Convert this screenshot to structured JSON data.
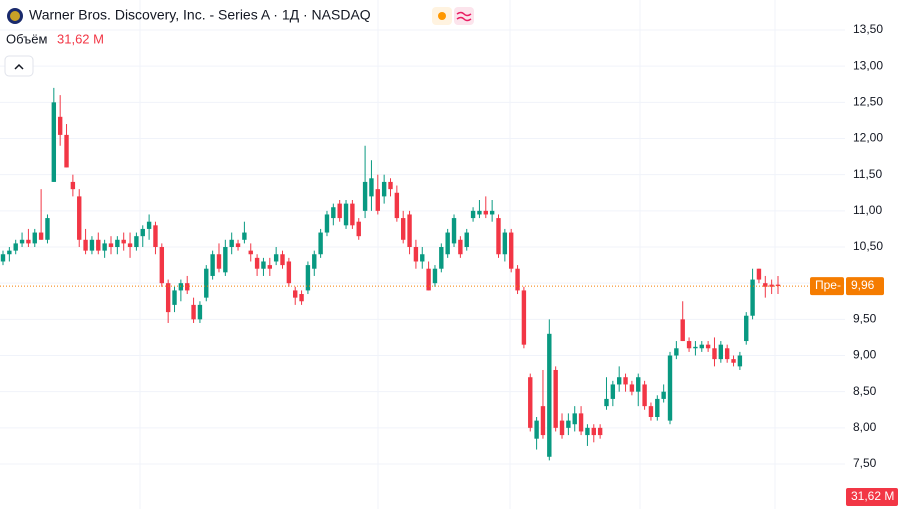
{
  "chart_data": {
    "type": "candlestick",
    "title": "Warner Bros. Discovery, Inc. - Series A · 1Д · NASDAQ",
    "volume_title": "Объём",
    "volume": {
      "value": 31.62,
      "label": "31,62 M"
    },
    "last_price": {
      "value": 9.96,
      "label": "9,96"
    },
    "last_price_tag": "Пре-",
    "up_color": "#089981",
    "down_color": "#f23645",
    "ylim": [
      6.878,
      13.915
    ],
    "yticks": [
      {
        "value": 7.5,
        "label": "7,50"
      },
      {
        "value": 8,
        "label": "8,00"
      },
      {
        "value": 8.5,
        "label": "8,50"
      },
      {
        "value": 9,
        "label": "9,00"
      },
      {
        "value": 9.5,
        "label": "9,50"
      },
      {
        "value": 10,
        "label": "10,00"
      },
      {
        "value": 10.5,
        "label": "10,50"
      },
      {
        "value": 11,
        "label": "11,00"
      },
      {
        "value": 11.5,
        "label": "11,50"
      },
      {
        "value": 12,
        "label": "12,00"
      },
      {
        "value": 12.5,
        "label": "12,50"
      },
      {
        "value": 13,
        "label": "13,00"
      },
      {
        "value": 13.5,
        "label": "13,50"
      }
    ],
    "grid": true,
    "ohlc": [
      [
        10.3,
        10.45,
        10.25,
        10.4
      ],
      [
        10.4,
        10.5,
        10.3,
        10.45
      ],
      [
        10.45,
        10.6,
        10.4,
        10.55
      ],
      [
        10.55,
        10.7,
        10.5,
        10.6
      ],
      [
        10.6,
        10.75,
        10.5,
        10.55
      ],
      [
        10.55,
        10.75,
        10.5,
        10.7
      ],
      [
        10.7,
        11.3,
        10.6,
        10.6
      ],
      [
        10.6,
        10.95,
        10.55,
        10.9
      ],
      [
        11.4,
        12.7,
        11.4,
        12.5
      ],
      [
        12.3,
        12.6,
        11.9,
        12.05
      ],
      [
        12.05,
        12.2,
        11.6,
        11.6
      ],
      [
        11.4,
        11.5,
        11.2,
        11.3
      ],
      [
        11.2,
        11.3,
        10.5,
        10.6
      ],
      [
        10.6,
        10.75,
        10.4,
        10.45
      ],
      [
        10.45,
        10.65,
        10.4,
        10.6
      ],
      [
        10.6,
        10.7,
        10.4,
        10.45
      ],
      [
        10.45,
        10.6,
        10.35,
        10.55
      ],
      [
        10.55,
        10.65,
        10.4,
        10.5
      ],
      [
        10.5,
        10.65,
        10.4,
        10.6
      ],
      [
        10.6,
        10.7,
        10.45,
        10.55
      ],
      [
        10.55,
        10.7,
        10.35,
        10.5
      ],
      [
        10.5,
        10.7,
        10.45,
        10.65
      ],
      [
        10.65,
        10.8,
        10.5,
        10.75
      ],
      [
        10.75,
        10.95,
        10.6,
        10.85
      ],
      [
        10.8,
        10.85,
        10.4,
        10.5
      ],
      [
        10.5,
        10.55,
        9.95,
        10.0
      ],
      [
        10.0,
        10.05,
        9.45,
        9.6
      ],
      [
        9.7,
        9.95,
        9.6,
        9.9
      ],
      [
        9.9,
        10.05,
        9.75,
        10.0
      ],
      [
        10.0,
        10.1,
        9.85,
        9.9
      ],
      [
        9.7,
        9.8,
        9.45,
        9.5
      ],
      [
        9.5,
        9.75,
        9.45,
        9.7
      ],
      [
        9.8,
        10.25,
        9.75,
        10.2
      ],
      [
        10.1,
        10.45,
        10.05,
        10.4
      ],
      [
        10.4,
        10.55,
        10.15,
        10.2
      ],
      [
        10.15,
        10.6,
        10.1,
        10.5
      ],
      [
        10.5,
        10.7,
        10.4,
        10.6
      ],
      [
        10.55,
        10.6,
        10.45,
        10.5
      ],
      [
        10.6,
        10.85,
        10.55,
        10.7
      ],
      [
        10.45,
        10.55,
        10.3,
        10.4
      ],
      [
        10.35,
        10.4,
        10.1,
        10.2
      ],
      [
        10.2,
        10.35,
        10.1,
        10.3
      ],
      [
        10.25,
        10.35,
        10.1,
        10.2
      ],
      [
        10.3,
        10.5,
        10.25,
        10.4
      ],
      [
        10.4,
        10.45,
        10.2,
        10.25
      ],
      [
        10.3,
        10.35,
        9.95,
        10.0
      ],
      [
        9.9,
        9.95,
        9.7,
        9.8
      ],
      [
        9.85,
        9.9,
        9.7,
        9.75
      ],
      [
        9.9,
        10.3,
        9.85,
        10.25
      ],
      [
        10.2,
        10.45,
        10.1,
        10.4
      ],
      [
        10.4,
        10.75,
        10.35,
        10.7
      ],
      [
        10.7,
        11.0,
        10.65,
        10.95
      ],
      [
        10.9,
        11.1,
        10.8,
        11.05
      ],
      [
        11.1,
        11.15,
        10.85,
        10.9
      ],
      [
        10.8,
        11.15,
        10.75,
        11.1
      ],
      [
        11.1,
        11.15,
        10.75,
        10.8
      ],
      [
        10.85,
        10.9,
        10.6,
        10.65
      ],
      [
        11.0,
        11.9,
        10.9,
        11.4
      ],
      [
        11.2,
        11.7,
        11.0,
        11.45
      ],
      [
        11.3,
        11.5,
        10.95,
        11.0
      ],
      [
        11.2,
        11.5,
        11.1,
        11.4
      ],
      [
        11.4,
        11.45,
        11.2,
        11.3
      ],
      [
        11.25,
        11.35,
        10.85,
        10.9
      ],
      [
        10.9,
        11.0,
        10.55,
        10.6
      ],
      [
        10.95,
        11.0,
        10.4,
        10.5
      ],
      [
        10.5,
        10.6,
        10.2,
        10.3
      ],
      [
        10.3,
        10.5,
        10.2,
        10.4
      ],
      [
        10.2,
        10.3,
        9.9,
        9.9
      ],
      [
        10.0,
        10.25,
        9.95,
        10.2
      ],
      [
        10.2,
        10.55,
        10.15,
        10.5
      ],
      [
        10.4,
        10.75,
        10.35,
        10.7
      ],
      [
        10.55,
        10.95,
        10.5,
        10.9
      ],
      [
        10.6,
        10.65,
        10.35,
        10.4
      ],
      [
        10.5,
        10.75,
        10.45,
        10.7
      ],
      [
        10.9,
        11.05,
        10.85,
        11.0
      ],
      [
        10.95,
        11.15,
        10.9,
        11.0
      ],
      [
        11.0,
        11.2,
        10.9,
        10.95
      ],
      [
        10.95,
        11.15,
        10.85,
        11.0
      ],
      [
        10.9,
        10.95,
        10.35,
        10.4
      ],
      [
        10.4,
        10.75,
        10.3,
        10.7
      ],
      [
        10.7,
        10.75,
        10.15,
        10.2
      ],
      [
        10.2,
        10.25,
        9.85,
        9.9
      ],
      [
        9.9,
        9.95,
        9.1,
        9.15
      ],
      [
        8.7,
        8.75,
        7.95,
        8.0
      ],
      [
        7.85,
        8.15,
        7.7,
        8.1
      ],
      [
        8.3,
        8.8,
        7.85,
        7.9
      ],
      [
        7.6,
        9.5,
        7.55,
        9.3
      ],
      [
        8.8,
        8.85,
        7.95,
        8.0
      ],
      [
        8.1,
        8.2,
        7.85,
        7.9
      ],
      [
        8.0,
        8.2,
        7.9,
        8.1
      ],
      [
        8.05,
        8.3,
        7.95,
        8.2
      ],
      [
        8.2,
        8.3,
        7.9,
        7.95
      ],
      [
        7.9,
        8.05,
        7.75,
        8.0
      ],
      [
        8.0,
        8.05,
        7.8,
        7.9
      ],
      [
        8.0,
        8.05,
        7.85,
        7.9
      ],
      [
        8.3,
        8.7,
        8.25,
        8.4
      ],
      [
        8.4,
        8.65,
        8.3,
        8.6
      ],
      [
        8.6,
        8.85,
        8.5,
        8.7
      ],
      [
        8.7,
        8.75,
        8.5,
        8.6
      ],
      [
        8.6,
        8.65,
        8.45,
        8.5
      ],
      [
        8.5,
        8.75,
        8.3,
        8.7
      ],
      [
        8.6,
        8.65,
        8.25,
        8.3
      ],
      [
        8.3,
        8.35,
        8.1,
        8.15
      ],
      [
        8.15,
        8.45,
        8.1,
        8.4
      ],
      [
        8.4,
        8.6,
        8.35,
        8.5
      ],
      [
        8.1,
        9.05,
        8.05,
        9.0
      ],
      [
        9.0,
        9.2,
        8.95,
        9.1
      ],
      [
        9.5,
        9.75,
        9.2,
        9.2
      ],
      [
        9.2,
        9.25,
        9.05,
        9.1
      ],
      [
        9.1,
        9.2,
        9.0,
        9.12
      ],
      [
        9.1,
        9.2,
        9.05,
        9.15
      ],
      [
        9.15,
        9.2,
        9.05,
        9.1
      ],
      [
        9.1,
        9.25,
        8.85,
        8.95
      ],
      [
        8.95,
        9.2,
        8.9,
        9.15
      ],
      [
        9.1,
        9.15,
        8.9,
        8.95
      ],
      [
        8.95,
        9.0,
        8.85,
        8.9
      ],
      [
        8.85,
        9.05,
        8.8,
        9.0
      ],
      [
        9.2,
        9.6,
        9.15,
        9.55
      ],
      [
        9.55,
        10.2,
        9.5,
        10.05
      ],
      [
        10.2,
        10.2,
        10.0,
        10.05
      ],
      [
        10.0,
        10.1,
        9.8,
        9.95
      ],
      [
        9.98,
        10.05,
        9.85,
        9.95
      ],
      [
        9.98,
        10.1,
        9.85,
        9.96
      ]
    ]
  }
}
